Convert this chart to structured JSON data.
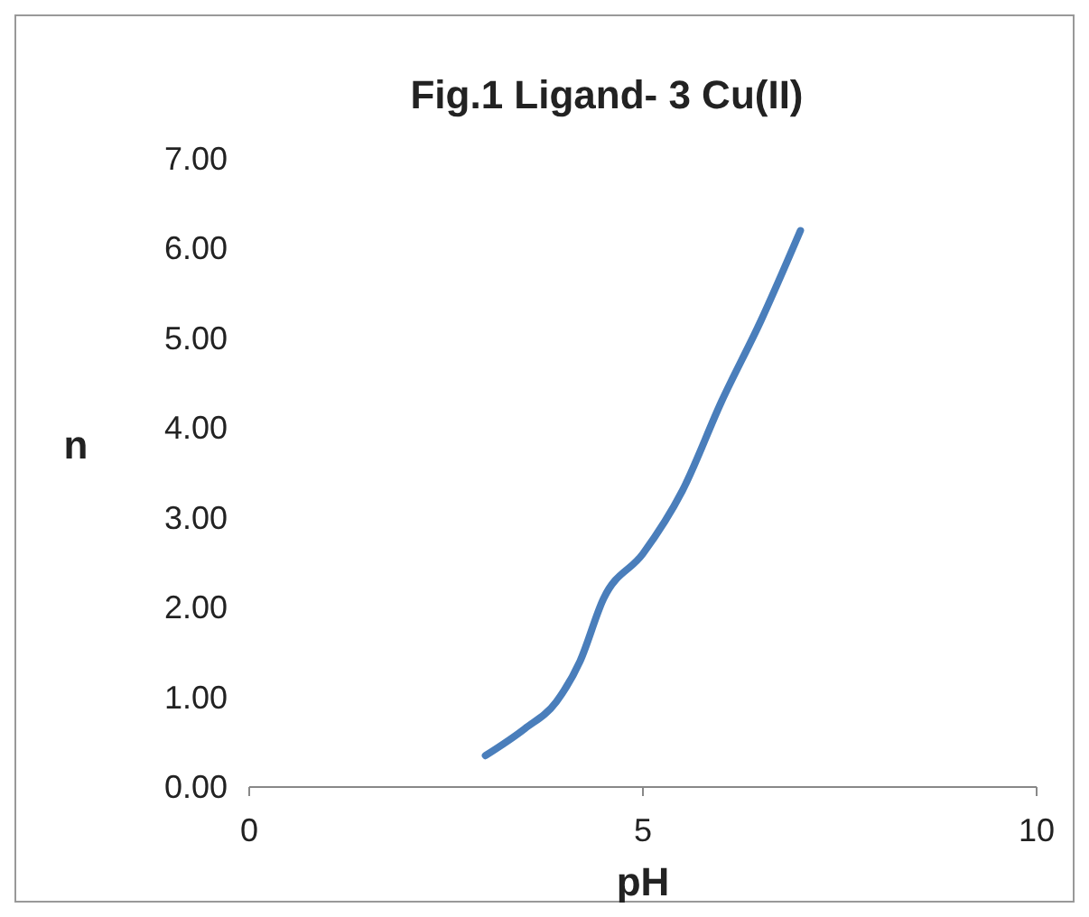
{
  "chart_data": {
    "type": "line",
    "title": "Fig.1 Ligand- 3 Cu(II)",
    "xlabel": "pH",
    "ylabel": "n",
    "x": [
      3,
      3.5,
      3.9,
      4.2,
      4.5,
      5,
      5.5,
      6,
      6.5,
      7
    ],
    "series": [
      {
        "color": "#4a7ebb",
        "values": [
          0.35,
          0.65,
          0.95,
          1.4,
          2.1,
          2.6,
          3.3,
          4.3,
          5.2,
          6.2
        ]
      }
    ],
    "xlim": [
      0,
      10
    ],
    "xticks": [
      0,
      5,
      10
    ],
    "ylim": [
      0,
      7
    ],
    "yticks": [
      {
        "value": 0,
        "label": "0.00"
      },
      {
        "value": 1,
        "label": "1.00"
      },
      {
        "value": 2,
        "label": "2.00"
      },
      {
        "value": 3,
        "label": "3.00"
      },
      {
        "value": 4,
        "label": "4.00"
      },
      {
        "value": 5,
        "label": "5.00"
      },
      {
        "value": 6,
        "label": "6.00"
      },
      {
        "value": 7,
        "label": "7.00"
      }
    ],
    "grid": false,
    "marker": "none",
    "line_style": "solid"
  }
}
